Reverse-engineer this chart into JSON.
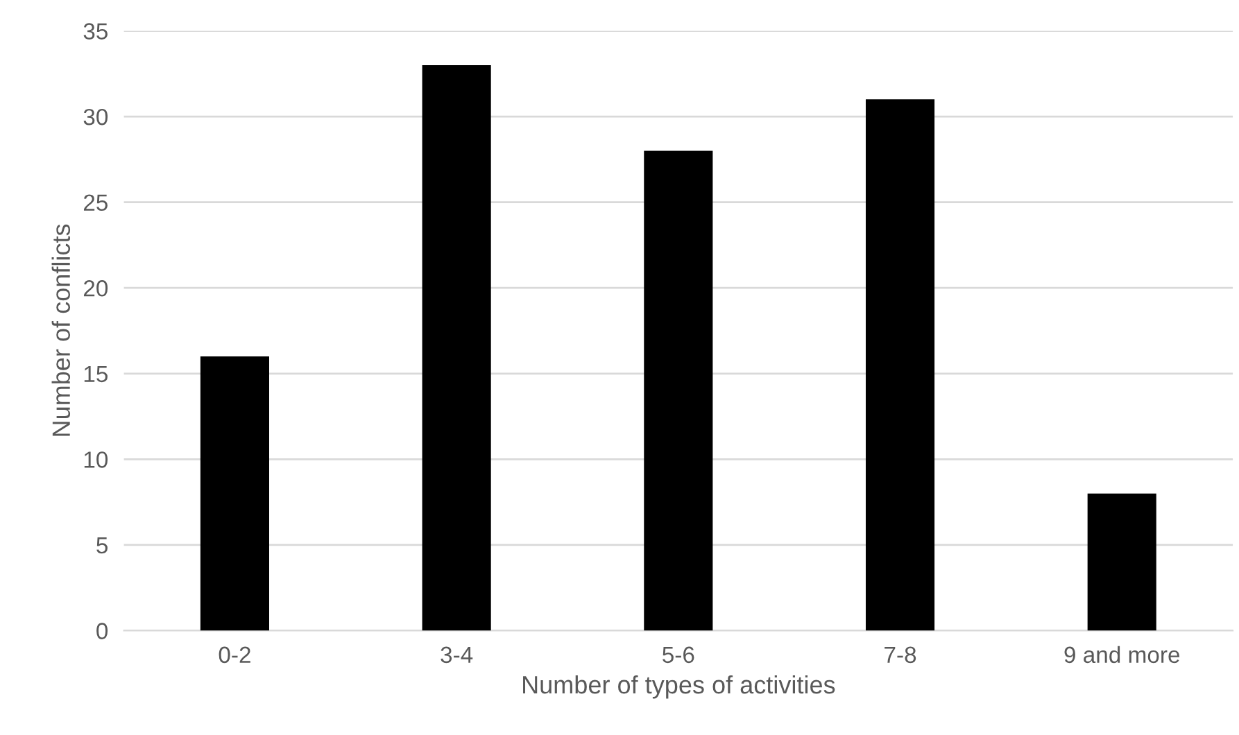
{
  "chart_data": {
    "type": "bar",
    "xlabel": "Number of types of activities",
    "ylabel": "Number of conflicts",
    "categories": [
      "0-2",
      "3-4",
      "5-6",
      "7-8",
      "9 and more"
    ],
    "values": [
      16,
      33,
      28,
      31,
      8
    ],
    "color": "#000000",
    "ylim": [
      0,
      35
    ],
    "yticks": [
      0,
      5,
      10,
      15,
      20,
      25,
      30,
      35
    ],
    "grid": "y",
    "legend": false
  }
}
